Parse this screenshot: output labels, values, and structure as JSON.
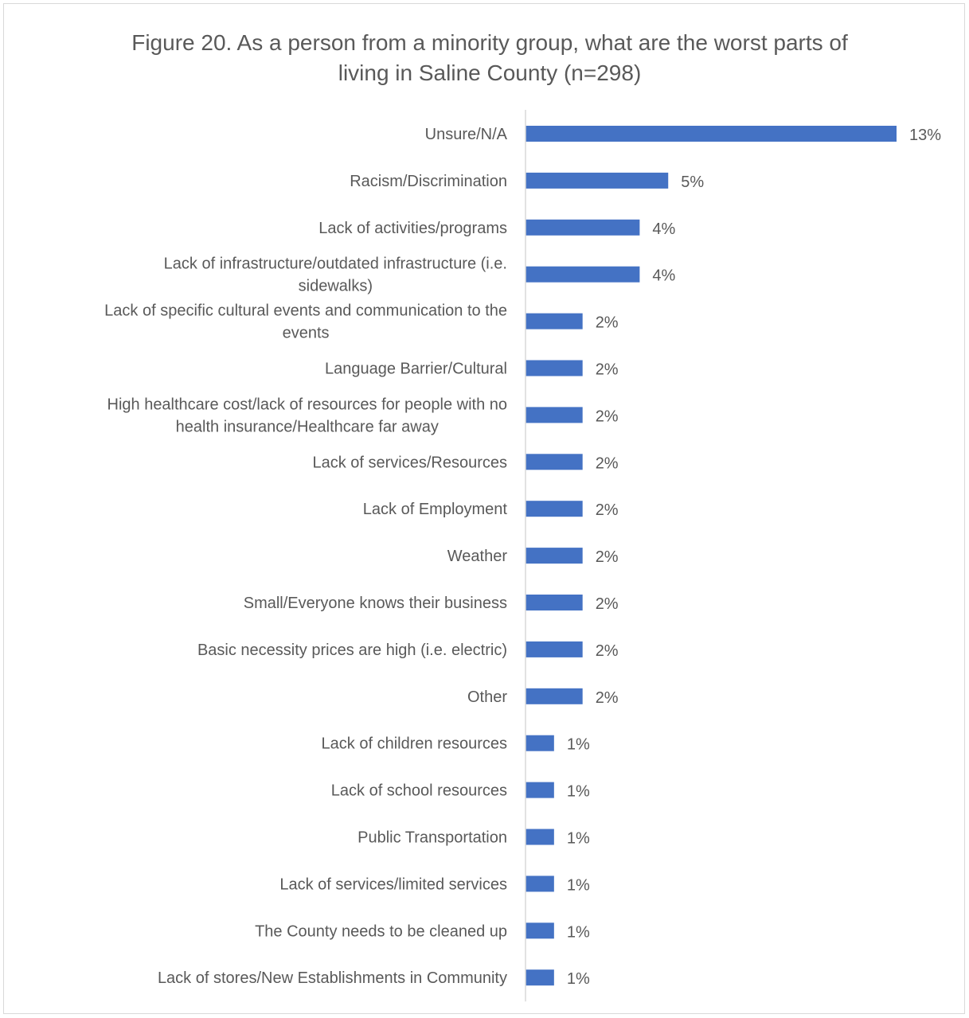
{
  "chart_data": {
    "type": "bar",
    "orientation": "horizontal",
    "title_lines": [
      "Figure 20. As a person from a minority group, what are the worst parts of",
      "living in Saline County (n=298)"
    ],
    "categories": [
      [
        "Unsure/N/A"
      ],
      [
        "Racism/Discrimination"
      ],
      [
        "Lack of activities/programs"
      ],
      [
        "Lack of infrastructure/outdated infrastructure (i.e.",
        "sidewalks)"
      ],
      [
        "Lack of specific cultural events and communication to the",
        "events"
      ],
      [
        "Language Barrier/Cultural"
      ],
      [
        "High healthcare cost/lack of resources for people with no",
        "health insurance/Healthcare far away"
      ],
      [
        "Lack of services/Resources"
      ],
      [
        "Lack of Employment"
      ],
      [
        "Weather"
      ],
      [
        "Small/Everyone knows their business"
      ],
      [
        "Basic necessity prices are high (i.e. electric)"
      ],
      [
        "Other"
      ],
      [
        "Lack of children resources"
      ],
      [
        "Lack of school resources"
      ],
      [
        "Public Transportation"
      ],
      [
        "Lack of services/limited services"
      ],
      [
        "The County needs to be cleaned up"
      ],
      [
        "Lack of stores/New Establishments in Community"
      ]
    ],
    "values": [
      13,
      5,
      4,
      4,
      2,
      2,
      2,
      2,
      2,
      2,
      2,
      2,
      2,
      1,
      1,
      1,
      1,
      1,
      1
    ],
    "data_labels": [
      "13%",
      "5%",
      "4%",
      "4%",
      "2%",
      "2%",
      "2%",
      "2%",
      "2%",
      "2%",
      "2%",
      "2%",
      "2%",
      "1%",
      "1%",
      "1%",
      "1%",
      "1%",
      "1%"
    ],
    "value_unit": "%",
    "xlim": [
      0,
      13
    ],
    "grid": false,
    "legend": "none",
    "bar_color": "#4472C4",
    "axis_color": "#d9d9d9",
    "text_color": "#595959"
  }
}
